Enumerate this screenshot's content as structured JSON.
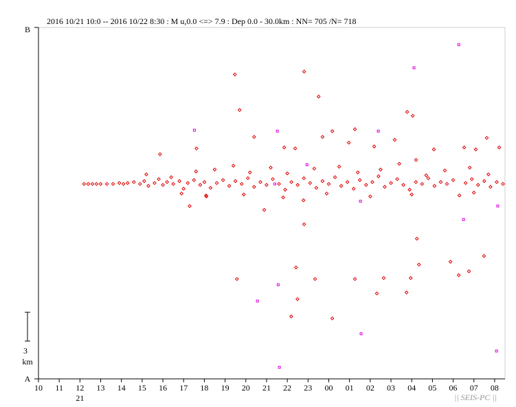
{
  "chart_data": {
    "type": "scatter",
    "title": "2016 10/21 10:0 -- 2016 10/22 8:30  : M u,0.0 <=> 7.9   :  Dep 0.0 - 30.0km :  NN= 705 /N= 718",
    "y_top_label": "B",
    "y_bottom_label": "A",
    "xlim": [
      10,
      32.5
    ],
    "ylim": [
      0,
      36.6
    ],
    "xticks": [
      10,
      11,
      12,
      13,
      14,
      15,
      16,
      17,
      18,
      19,
      20,
      21,
      22,
      23,
      {
        "value": 24,
        "label": "00"
      },
      {
        "value": 25,
        "label": "01"
      },
      {
        "value": 26,
        "label": "02"
      },
      {
        "value": 27,
        "label": "03"
      },
      {
        "value": 28,
        "label": "04"
      },
      {
        "value": 29,
        "label": "05"
      },
      {
        "value": 30,
        "label": "06"
      },
      {
        "value": 31,
        "label": "07"
      },
      {
        "value": 32,
        "label": "08"
      }
    ],
    "date_label": {
      "text": "21",
      "x": 12
    },
    "scale_bar": {
      "length": 3,
      "unit": "km"
    },
    "watermark": "|| SEIS-PC ||",
    "series": [
      {
        "color": "#e00000",
        "marker": "diamond",
        "x": [
          12.2,
          12.4,
          12.6,
          12.8,
          13.0,
          13.3,
          13.6,
          13.9,
          14.1,
          14.3,
          14.6,
          14.9,
          15.1,
          15.3,
          15.6,
          15.8,
          16.0,
          16.2,
          16.5,
          16.8,
          17.0,
          17.2,
          17.5,
          17.8,
          18.0,
          18.3,
          18.6,
          18.9,
          19.2,
          19.5,
          19.8,
          20.1,
          20.4,
          20.7,
          21.0,
          21.3,
          21.6,
          21.9,
          22.2,
          22.5,
          22.8,
          23.1,
          23.4,
          23.7,
          24.0,
          24.3,
          24.6,
          24.9,
          25.2,
          25.5,
          25.8,
          26.1,
          26.4,
          26.7,
          27.0,
          27.3,
          27.6,
          27.9,
          28.2,
          28.5,
          28.8,
          29.1,
          29.4,
          29.7,
          30.0,
          30.3,
          30.6,
          30.9,
          31.2,
          31.5,
          31.8,
          32.1,
          32.4,
          15.2,
          16.4,
          17.6,
          18.5,
          19.4,
          20.2,
          21.2,
          22.0,
          23.3,
          24.5,
          25.4,
          26.5,
          27.4,
          28.7,
          29.6,
          30.8,
          31.7,
          16.9,
          18.1,
          19.9,
          21.8,
          23.9,
          26.0,
          28.0,
          31.0,
          19.47,
          19.7,
          22.81,
          23.51,
          27.78,
          28.05,
          24.17,
          25.26,
          21.85,
          19.57,
          20.89,
          22.81,
          22.42,
          23.34,
          22.49,
          22.19,
          24.17,
          25.26,
          26.65,
          26.32,
          27.75,
          27.95,
          28.25,
          28.35,
          29.87,
          30.27,
          30.76,
          31.49,
          22.78,
          28.21,
          29.07,
          30.53,
          31.09,
          31.62,
          32.22,
          15.86,
          17.62,
          20.4,
          23.7,
          17.29,
          18.08,
          26.19,
          27.18,
          22.38,
          24.97
        ],
        "values": [
          20.3,
          20.3,
          20.3,
          20.3,
          20.3,
          20.3,
          20.3,
          20.4,
          20.3,
          20.4,
          20.5,
          20.3,
          20.6,
          20.1,
          20.4,
          20.8,
          20.2,
          20.5,
          20.3,
          20.6,
          19.8,
          20.4,
          20.7,
          20.2,
          20.5,
          19.9,
          20.4,
          20.7,
          20.1,
          20.6,
          20.3,
          20.9,
          20.0,
          20.5,
          20.2,
          20.8,
          20.3,
          19.7,
          20.5,
          20.2,
          20.9,
          20.4,
          19.9,
          20.6,
          20.3,
          21.0,
          20.1,
          20.5,
          19.8,
          20.7,
          20.2,
          20.5,
          21.1,
          20.0,
          20.4,
          20.8,
          20.2,
          19.7,
          20.5,
          20.3,
          20.9,
          20.1,
          20.5,
          20.3,
          20.7,
          19.1,
          20.4,
          20.8,
          20.2,
          20.6,
          20.0,
          20.5,
          20.3,
          21.3,
          21.0,
          21.6,
          21.8,
          22.2,
          21.5,
          22.0,
          21.4,
          21.9,
          22.1,
          21.5,
          21.8,
          22.4,
          21.2,
          21.7,
          22.0,
          21.3,
          19.3,
          19.0,
          19.2,
          18.9,
          19.3,
          19.0,
          19.2,
          19.4,
          31.7,
          28.0,
          32.0,
          29.4,
          27.8,
          27.4,
          25.8,
          26.0,
          24.1,
          10.4,
          17.6,
          16.1,
          11.6,
          10.4,
          8.3,
          6.5,
          6.3,
          10.4,
          10.5,
          8.9,
          9.0,
          10.5,
          14.6,
          11.9,
          12.2,
          10.8,
          11.2,
          12.8,
          18.6,
          22.8,
          23.9,
          24.1,
          23.9,
          25.1,
          24.1,
          23.4,
          24.0,
          25.2,
          25.2,
          18.0,
          19.1,
          24.2,
          24.9,
          24.0,
          24.6
        ]
      },
      {
        "color": "#e000e0",
        "marker": "square",
        "x": [
          17.52,
          21.52,
          26.39,
          28.11,
          30.27,
          25.53,
          30.5,
          32.15,
          32.09,
          25.56,
          21.62,
          20.56,
          21.56,
          22.95,
          21.4
        ],
        "values": [
          25.9,
          25.8,
          25.8,
          32.4,
          34.8,
          18.5,
          16.6,
          18.0,
          2.9,
          4.7,
          1.2,
          8.1,
          9.8,
          22.3,
          20.3
        ]
      }
    ]
  }
}
